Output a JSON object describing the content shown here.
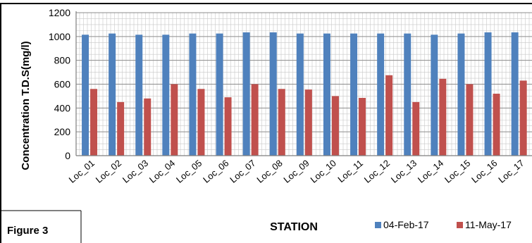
{
  "chart_data": {
    "type": "bar",
    "categories": [
      "Loc_01",
      "Loc_02",
      "Loc_03",
      "Loc_04",
      "Loc_05",
      "Loc_06",
      "Loc_07",
      "Loc_08",
      "Loc_09",
      "Loc_10",
      "Loc_11",
      "Loc_12",
      "Loc_13",
      "Loc_14",
      "Loc_15",
      "Loc_16",
      "Loc_17"
    ],
    "series": [
      {
        "name": "04-Feb-17",
        "color": "#4f81bd",
        "values": [
          1015,
          1025,
          1015,
          1015,
          1025,
          1025,
          1035,
          1035,
          1025,
          1025,
          1025,
          1025,
          1025,
          1015,
          1025,
          1035,
          1035
        ]
      },
      {
        "name": "11-May-17",
        "color": "#c0504d",
        "values": [
          560,
          450,
          480,
          600,
          560,
          490,
          600,
          560,
          555,
          500,
          485,
          675,
          450,
          645,
          600,
          520,
          630
        ]
      }
    ],
    "xlabel": "STATION",
    "ylabel": "Concentration T.D.S(mg/l)",
    "ylim": [
      0,
      1200
    ],
    "yticks": [
      0,
      200,
      400,
      600,
      800,
      1000,
      1200
    ],
    "grid": true,
    "legend_position": "bottom-right"
  },
  "caption": "Figure 3"
}
